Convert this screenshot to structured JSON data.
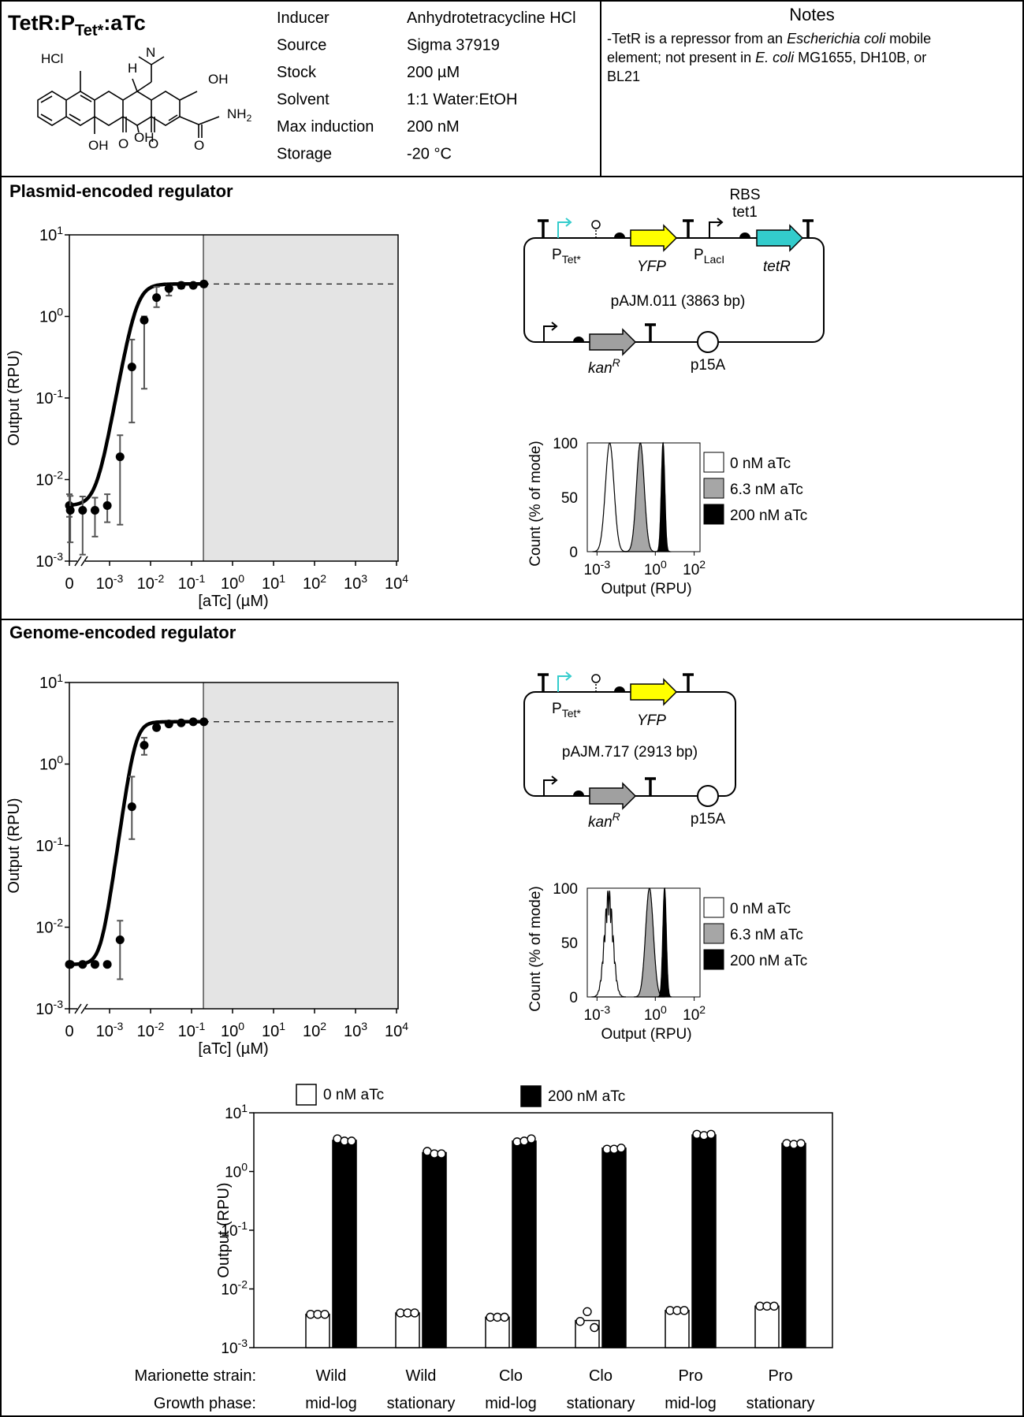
{
  "header": {
    "title_main": "TetR:P",
    "title_sub": "Tet*",
    "title_end": ":aTc",
    "inducer_table": [
      {
        "label": "Inducer",
        "value": "Anhydrotetracycline HCl"
      },
      {
        "label": "Source",
        "value": "Sigma 37919"
      },
      {
        "label": "Stock",
        "value": "200 µM"
      },
      {
        "label": "Solvent",
        "value": "1:1 Water:EtOH"
      },
      {
        "label": "Max induction",
        "value": "200 nM"
      },
      {
        "label": "Storage",
        "value": "-20 °C"
      }
    ],
    "structure_labels": {
      "hcl": "HCl",
      "oh1": "OH",
      "oh2": "OH",
      "oh3": "OH",
      "nh2": "NH",
      "nh2_sub": "2",
      "h": "H",
      "n": "N",
      "o1": "O",
      "o2": "O",
      "o3": "O"
    }
  },
  "notes": {
    "title": "Notes",
    "line1_a": "-TetR is a repressor from an ",
    "line1_b": "Escherichia coli",
    "line1_c": " mobile",
    "line2_a": "element; not present in ",
    "line2_b": "E. coli",
    "line2_c": " MG1655, DH10B, or",
    "line3": "BL21"
  },
  "sections": {
    "plasmid_title": "Plasmid-encoded regulator",
    "genome_title": "Genome-encoded regulator"
  },
  "plasmid_map_1": {
    "name": "pAJM.011 (3863 bp)",
    "promoter_label": "P",
    "promoter_sub": "Tet*",
    "reporter": "YFP",
    "promoter2_label": "P",
    "promoter2_sub": "LacI",
    "rbs_label": "RBS",
    "rbs_name": "tet1",
    "regulator_gene": "tetR",
    "resistance": "kan",
    "resistance_sup": "R",
    "origin": "p15A"
  },
  "plasmid_map_2": {
    "name": "pAJM.717 (2913 bp)",
    "promoter_label": "P",
    "promoter_sub": "Tet*",
    "reporter": "YFP",
    "resistance": "kan",
    "resistance_sup": "R",
    "origin": "p15A"
  },
  "colors": {
    "cyan": "#33cccc",
    "yellow": "#ffff00",
    "gray_gene": "#a0a0a0",
    "shade": "#e4e4e4",
    "hist_mid": "#a6a6a6"
  },
  "chart_data": [
    {
      "id": "plasmid_response",
      "type": "scatter",
      "ylabel": "Output (RPU)",
      "xlabel": "[aTc] (µM)",
      "yscale": "log",
      "ylim": [
        0.001,
        10
      ],
      "x_ticks": [
        "0",
        "10-3",
        "10-2",
        "10-1",
        "100",
        "101",
        "102",
        "103",
        "104"
      ],
      "y_ticks": [
        "10-3",
        "10-2",
        "10-1",
        "100",
        "101"
      ],
      "fit_curve": true,
      "max_level": 2.5,
      "points": [
        {
          "x": 0,
          "y": 0.0048,
          "lo": 0.0035,
          "hi": 0.0066
        },
        {
          "x": 0.00011,
          "y": 0.0042,
          "lo": 0.0017,
          "hi": 0.0063
        },
        {
          "x": 0.00022,
          "y": 0.0042,
          "lo": 0.0012,
          "hi": 0.0062
        },
        {
          "x": 0.00044,
          "y": 0.0042,
          "lo": 0.002,
          "hi": 0.006
        },
        {
          "x": 0.00088,
          "y": 0.0048,
          "lo": 0.003,
          "hi": 0.0066
        },
        {
          "x": 0.0018,
          "y": 0.019,
          "lo": 0.0028,
          "hi": 0.035
        },
        {
          "x": 0.0035,
          "y": 0.24,
          "lo": 0.05,
          "hi": 0.52
        },
        {
          "x": 0.007,
          "y": 0.9,
          "lo": 0.13,
          "hi": 1.0
        },
        {
          "x": 0.014,
          "y": 1.7,
          "lo": 1.3,
          "hi": 2.3
        },
        {
          "x": 0.028,
          "y": 2.2,
          "lo": 1.8,
          "hi": 2.4
        },
        {
          "x": 0.056,
          "y": 2.4,
          "lo": 2.2,
          "hi": 2.6
        },
        {
          "x": 0.11,
          "y": 2.4,
          "lo": 2.3,
          "hi": 2.5
        },
        {
          "x": 0.2,
          "y": 2.5,
          "lo": 2.3,
          "hi": 2.7
        }
      ]
    },
    {
      "id": "plasmid_histogram",
      "type": "area",
      "ylabel": "Count (% of mode)",
      "xlabel": "Output (RPU)",
      "x_ticks": [
        "10-3",
        "100",
        "102"
      ],
      "y_ticks": [
        "0",
        "50",
        "100"
      ],
      "series": [
        {
          "name": "0 nM aTc",
          "peak": 0.0045
        },
        {
          "name": "6.3 nM aTc",
          "peak": 0.17
        },
        {
          "name": "200 nM aTc",
          "peak": 2.5
        }
      ]
    },
    {
      "id": "genome_response",
      "type": "scatter",
      "ylabel": "Output (RPU)",
      "xlabel": "[aTc] (µM)",
      "yscale": "log",
      "ylim": [
        0.001,
        10
      ],
      "x_ticks": [
        "0",
        "10-3",
        "10-2",
        "10-1",
        "100",
        "101",
        "102",
        "103",
        "104"
      ],
      "y_ticks": [
        "10-3",
        "10-2",
        "10-1",
        "100",
        "101"
      ],
      "fit_curve": true,
      "max_level": 3.3,
      "points": [
        {
          "x": 0,
          "y": 0.0035,
          "lo": 0.0033,
          "hi": 0.0037
        },
        {
          "x": 0.00011,
          "y": 0.0035,
          "lo": 0.0033,
          "hi": 0.0037
        },
        {
          "x": 0.00022,
          "y": 0.0035,
          "lo": 0.0033,
          "hi": 0.0037
        },
        {
          "x": 0.00044,
          "y": 0.0035,
          "lo": 0.0033,
          "hi": 0.0037
        },
        {
          "x": 0.00088,
          "y": 0.0035,
          "lo": 0.0033,
          "hi": 0.0037
        },
        {
          "x": 0.0018,
          "y": 0.007,
          "lo": 0.0023,
          "hi": 0.012
        },
        {
          "x": 0.0035,
          "y": 0.3,
          "lo": 0.12,
          "hi": 0.7
        },
        {
          "x": 0.007,
          "y": 1.7,
          "lo": 1.3,
          "hi": 2.1
        },
        {
          "x": 0.014,
          "y": 2.8,
          "lo": 2.6,
          "hi": 3.0
        },
        {
          "x": 0.028,
          "y": 3.1,
          "lo": 2.9,
          "hi": 3.3
        },
        {
          "x": 0.056,
          "y": 3.2,
          "lo": 3.0,
          "hi": 3.4
        },
        {
          "x": 0.11,
          "y": 3.3,
          "lo": 3.1,
          "hi": 3.5
        },
        {
          "x": 0.2,
          "y": 3.3,
          "lo": 3.1,
          "hi": 3.5
        }
      ]
    },
    {
      "id": "genome_histogram",
      "type": "area",
      "ylabel": "Count (% of mode)",
      "xlabel": "Output (RPU)",
      "x_ticks": [
        "10-3",
        "100",
        "102"
      ],
      "y_ticks": [
        "0",
        "50",
        "100"
      ],
      "series": [
        {
          "name": "0 nM aTc",
          "peak": 0.004
        },
        {
          "name": "6.3 nM aTc",
          "peak": 0.5
        },
        {
          "name": "200 nM aTc",
          "peak": 3.0
        }
      ]
    },
    {
      "id": "strain_bars",
      "type": "bar",
      "ylabel": "Output (RPU)",
      "yscale": "log",
      "ylim": [
        0.001,
        10
      ],
      "y_ticks": [
        "10-3",
        "10-2",
        "10-1",
        "100",
        "101"
      ],
      "row_labels": [
        "Marionette strain:",
        "Growth phase:"
      ],
      "categories": [
        {
          "strain": "Wild",
          "phase": "mid-log"
        },
        {
          "strain": "Wild",
          "phase": "stationary"
        },
        {
          "strain": "Clo",
          "phase": "mid-log"
        },
        {
          "strain": "Clo",
          "phase": "stationary"
        },
        {
          "strain": "Pro",
          "phase": "mid-log"
        },
        {
          "strain": "Pro",
          "phase": "stationary"
        }
      ],
      "series": [
        {
          "name": "0 nM aTc",
          "values": [
            0.0037,
            0.0039,
            0.0033,
            0.0029,
            0.0043,
            0.0051
          ],
          "replicates": [
            [
              0.0037,
              0.0037,
              0.0037
            ],
            [
              0.0039,
              0.0039,
              0.0039
            ],
            [
              0.0033,
              0.0033,
              0.0033
            ],
            [
              0.0028,
              0.0041,
              0.0022
            ],
            [
              0.0043,
              0.0043,
              0.0043
            ],
            [
              0.0051,
              0.0051,
              0.0051
            ]
          ]
        },
        {
          "name": "200 nM aTc",
          "values": [
            3.4,
            2.1,
            3.3,
            2.5,
            4.2,
            3.0
          ],
          "replicates": [
            [
              3.6,
              3.3,
              3.3
            ],
            [
              2.2,
              2.0,
              2.0
            ],
            [
              3.2,
              3.3,
              3.6
            ],
            [
              2.4,
              2.4,
              2.5
            ],
            [
              4.3,
              4.1,
              4.3
            ],
            [
              3.0,
              2.9,
              3.0
            ]
          ]
        }
      ]
    }
  ]
}
